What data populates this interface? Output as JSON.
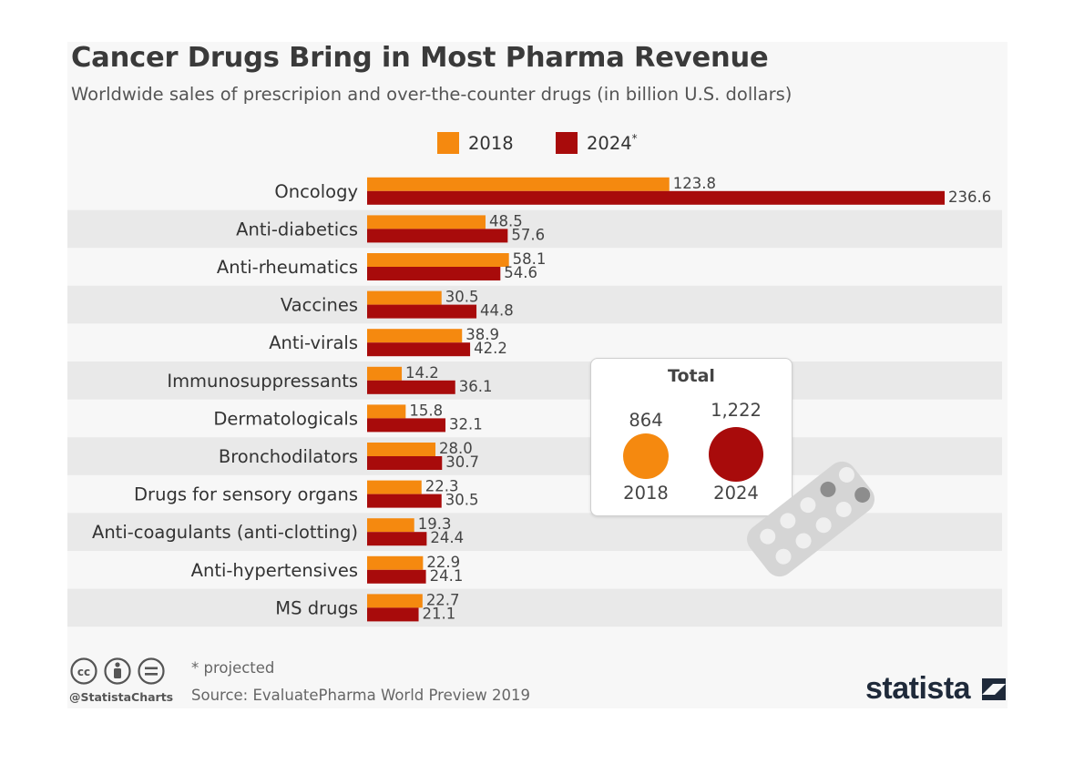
{
  "chart_data": {
    "type": "bar",
    "orientation": "horizontal",
    "title": "Cancer Drugs Bring in Most Pharma Revenue",
    "subtitle": "Worldwide sales of prescripion and over-the-counter drugs (in billion U.S. dollars)",
    "categories": [
      "Oncology",
      "Anti-diabetics",
      "Anti-rheumatics",
      "Vaccines",
      "Anti-virals",
      "Immunosuppressants",
      "Dermatologicals",
      "Bronchodilators",
      "Drugs for sensory organs",
      "Anti-coagulants (anti-clotting)",
      "Anti-hypertensives",
      "MS drugs"
    ],
    "series": [
      {
        "name": "2018",
        "values": [
          123.8,
          48.5,
          58.1,
          30.5,
          38.9,
          14.2,
          15.8,
          28.0,
          22.3,
          19.3,
          22.9,
          22.7
        ]
      },
      {
        "name": "2024",
        "values": [
          236.6,
          57.6,
          54.6,
          44.8,
          42.2,
          36.1,
          32.1,
          30.7,
          30.5,
          24.4,
          24.1,
          21.1
        ]
      }
    ],
    "value_labels": [
      [
        "123.8",
        "48.5",
        "58.1",
        "30.5",
        "38.9",
        "14.2",
        "15.8",
        "28.0",
        "22.3",
        "19.3",
        "22.9",
        "22.7"
      ],
      [
        "236.6",
        "57.6",
        "54.6",
        "44.8",
        "42.2",
        "36.1",
        "32.1",
        "30.7",
        "30.5",
        "24.4",
        "24.1",
        "21.1"
      ]
    ],
    "legend": [
      {
        "label": "2018",
        "mark": "",
        "color": "#f5890f"
      },
      {
        "label": "2024",
        "mark": "*",
        "color": "#a80b0b"
      }
    ],
    "xlim": [
      0,
      236.6
    ],
    "grid": false,
    "legend_position": "top-center",
    "totals": {
      "title": "Total",
      "items": [
        {
          "year": "2018",
          "value": "864",
          "amount": 864,
          "color": "#f5890f"
        },
        {
          "year": "2024",
          "value": "1,222",
          "amount": 1222,
          "color": "#a80b0b"
        }
      ]
    }
  },
  "footer": {
    "note": "* projected",
    "source": "Source: EvaluatePharma World Preview 2019",
    "handle": "@StatistaCharts",
    "brand": "statista"
  },
  "colors": {
    "series_2018": "#f5890f",
    "series_2024": "#a80b0b",
    "row_stripe": "#e9e9e9",
    "background": "#f7f7f7"
  }
}
